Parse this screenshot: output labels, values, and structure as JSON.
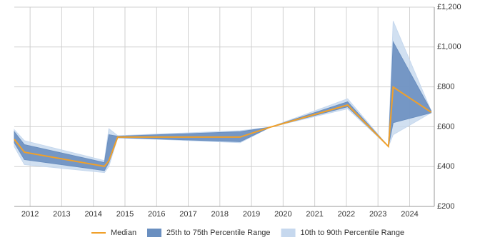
{
  "chart_data": {
    "type": "line",
    "x": [
      2011.5,
      2011.82,
      2014.35,
      2014.49,
      2014.77,
      2018.64,
      2019.6,
      2022.04,
      2023.33,
      2023.48,
      2024.68
    ],
    "series": [
      {
        "name": "Median",
        "color": "#f0a02a",
        "values": [
          537,
          472,
          401,
          429,
          548,
          548,
          598,
          709,
          501,
          799,
          673
        ]
      }
    ],
    "bands": [
      {
        "name": "10th to 90th Percentile Range",
        "color": "#c6d8ee",
        "lower": [
          500,
          410,
          370,
          400,
          545,
          520,
          598,
          690,
          501,
          560,
          670
        ],
        "upper": [
          585,
          530,
          430,
          590,
          555,
          580,
          598,
          740,
          501,
          1130,
          680
        ]
      },
      {
        "name": "25th to 75th Percentile Range",
        "color": "#6a8fc0",
        "lower": [
          520,
          435,
          380,
          420,
          545,
          525,
          598,
          700,
          501,
          620,
          670
        ],
        "upper": [
          575,
          510,
          420,
          560,
          552,
          575,
          598,
          725,
          501,
          1025,
          680
        ]
      }
    ],
    "xlim": [
      2011.5,
      2024.78
    ],
    "xticks": [
      2012,
      2013,
      2014,
      2015,
      2016,
      2017,
      2018,
      2019,
      2020,
      2021,
      2022,
      2023,
      2024
    ],
    "ylim": [
      200,
      1200
    ],
    "yticks": [
      {
        "value": 200,
        "label": "£200"
      },
      {
        "value": 400,
        "label": "£400"
      },
      {
        "value": 600,
        "label": "£600"
      },
      {
        "value": 800,
        "label": "£800"
      },
      {
        "value": 1000,
        "label": "£1,000"
      },
      {
        "value": 1200,
        "label": "£1,200"
      }
    ],
    "grid": true
  }
}
